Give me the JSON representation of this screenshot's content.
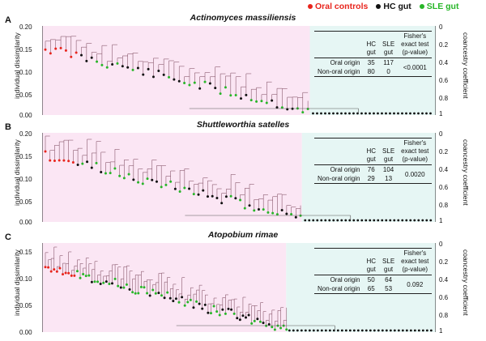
{
  "legend": [
    {
      "label": "Oral controls",
      "color": "#e8251d"
    },
    {
      "label": "HC gut",
      "color": "#111111"
    },
    {
      "label": "SLE gut",
      "color": "#27b628"
    }
  ],
  "colors": {
    "oral_region": "#fbe6f4",
    "gut_region": "#e6f6f4",
    "link": "#8a5a6e"
  },
  "axes": {
    "left_label": "individual dissimilarity",
    "right_label": "coancestry coefficient",
    "right_ticks": [
      "0",
      "0.2",
      "0.4",
      "0.6",
      "0.8",
      "1"
    ]
  },
  "panels": [
    {
      "letter": "A",
      "title": "Actinomyces massiliensis",
      "left_ticks": [
        "0.00",
        "0.05",
        "0.10",
        "0.15",
        "0.20"
      ],
      "table": {
        "col_headers": [
          "HC\ngut",
          "SLE\ngut",
          "Fisher's\nexact test\n(p-value)"
        ],
        "rows": [
          {
            "label": "Oral origin",
            "hc": "35",
            "sle": "117"
          },
          {
            "label": "Non-oral origin",
            "hc": "80",
            "sle": "0"
          }
        ],
        "p_value": "<0.0001"
      }
    },
    {
      "letter": "B",
      "title": "Shuttleworthia satelles",
      "left_ticks": [
        "0.00",
        "0.05",
        "0.10",
        "0.15",
        "0.20"
      ],
      "table": {
        "col_headers": [
          "HC\ngut",
          "SLE\ngut",
          "Fisher's\nexact test\n(p-value)"
        ],
        "rows": [
          {
            "label": "Oral origin",
            "hc": "76",
            "sle": "104"
          },
          {
            "label": "Non-oral origin",
            "hc": "29",
            "sle": "13"
          }
        ],
        "p_value": "0.0020"
      }
    },
    {
      "letter": "C",
      "title": "Atopobium rimae",
      "left_ticks": [
        "0.00",
        "0.05",
        "0.10",
        "0.15"
      ],
      "table": {
        "col_headers": [
          "HC\ngut",
          "SLE\ngut",
          "Fisher's\nexact test\n(p-value)"
        ],
        "rows": [
          {
            "label": "Oral origin",
            "hc": "50",
            "sle": "64"
          },
          {
            "label": "Non-oral origin",
            "hc": "65",
            "sle": "53"
          }
        ],
        "p_value": "0.092"
      }
    }
  ]
}
